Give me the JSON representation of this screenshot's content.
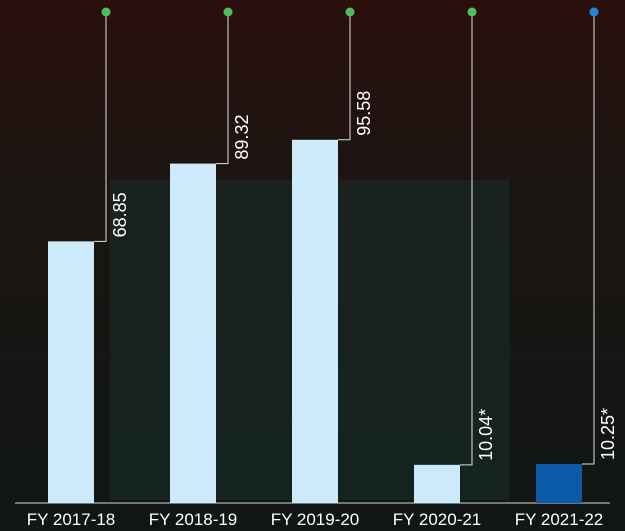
{
  "chart_data": {
    "type": "bar",
    "categories": [
      "FY 2017-18",
      "FY 2018-19",
      "FY 2019-20",
      "FY 2020-21",
      "FY 2021-22"
    ],
    "values": [
      68.85,
      89.32,
      95.58,
      10.04,
      10.25
    ],
    "value_labels": [
      "68.85",
      "89.32",
      "95.58",
      "10.04*",
      "10.25*"
    ],
    "colors": [
      "#cdeafa",
      "#cdeafa",
      "#cdeafa",
      "#cdeafa",
      "#0b5aa8"
    ],
    "dot_colors": [
      "#4cbf5a",
      "#4cbf5a",
      "#4cbf5a",
      "#4cbf5a",
      "#1e88d8"
    ]
  }
}
